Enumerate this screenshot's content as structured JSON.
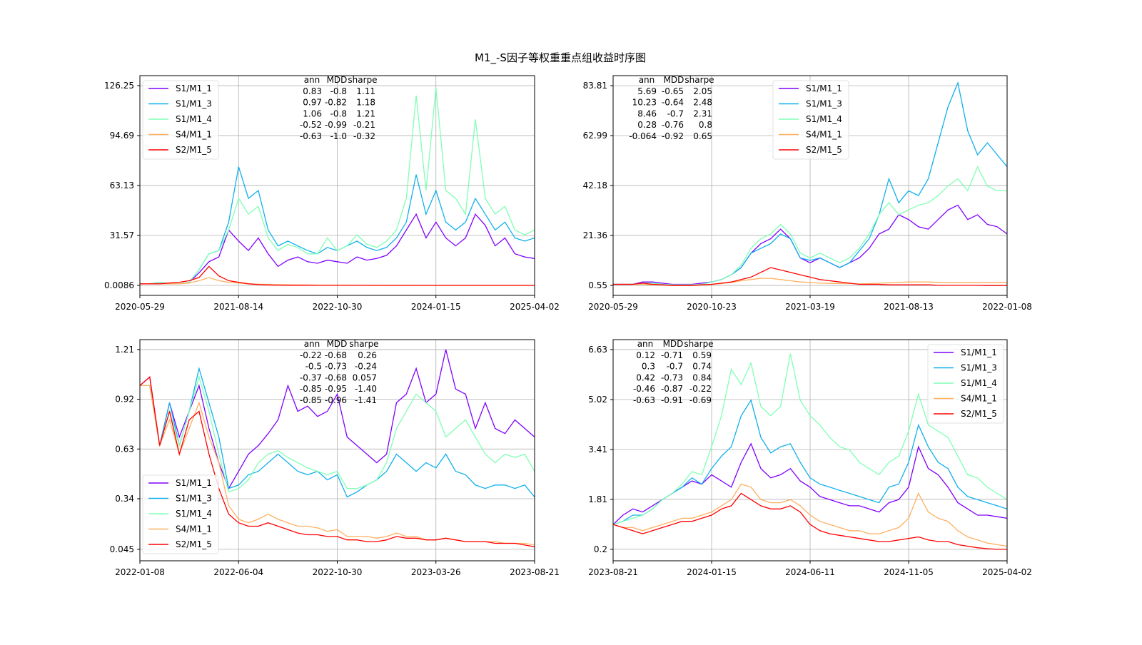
{
  "title": "M1_-S因子等权重重点组收益时序图",
  "series_colors": {
    "S1/M1_1": "#8000ff",
    "S1/M1_3": "#10b0ec",
    "S1/M1_4": "#80ffb4",
    "S4/M1_1": "#ffb060",
    "S2/M1_5": "#ff0000"
  },
  "chart_data": [
    {
      "type": "line",
      "xticks": [
        "2020-05-29",
        "2021-08-14",
        "2022-10-30",
        "2024-01-15",
        "2025-04-02"
      ],
      "yticks": [
        "0.0086",
        "31.57",
        "63.13",
        "94.69",
        "126.25"
      ],
      "ylim": [
        -6.3,
        132.6
      ],
      "grid": true,
      "legend_placement": "upper-left",
      "stats_header": [
        "ann",
        "MDD",
        "sharpe"
      ],
      "stats_rows": [
        [
          "0.83",
          "-0.8",
          "1.11"
        ],
        [
          "0.97",
          "-0.82",
          "1.18"
        ],
        [
          "1.06",
          "-0.8",
          "1.21"
        ],
        [
          "-0.52",
          "-0.99",
          "-0.21"
        ],
        [
          "-0.63",
          "-1.0",
          "-0.32"
        ]
      ],
      "series": [
        {
          "name": "S1/M1_1",
          "values": [
            1,
            1,
            2,
            1,
            1,
            2,
            8,
            15,
            18,
            35,
            28,
            22,
            30,
            20,
            12,
            16,
            18,
            15,
            14,
            16,
            15,
            14,
            18,
            16,
            17,
            19,
            25,
            35,
            45,
            30,
            40,
            30,
            25,
            30,
            45,
            38,
            25,
            30,
            20,
            18,
            17
          ]
        },
        {
          "name": "S1/M1_3",
          "values": [
            1,
            1,
            2,
            1,
            1,
            2,
            10,
            20,
            22,
            40,
            75,
            55,
            60,
            35,
            25,
            28,
            25,
            22,
            20,
            24,
            22,
            25,
            28,
            24,
            22,
            24,
            30,
            40,
            70,
            45,
            60,
            40,
            35,
            40,
            55,
            45,
            35,
            40,
            30,
            28,
            30
          ]
        },
        {
          "name": "S1/M1_4",
          "values": [
            1,
            1,
            2,
            1,
            1,
            2,
            10,
            20,
            22,
            35,
            55,
            45,
            50,
            30,
            22,
            26,
            24,
            20,
            20,
            30,
            22,
            25,
            32,
            26,
            24,
            28,
            35,
            55,
            120,
            60,
            125,
            60,
            55,
            45,
            105,
            55,
            45,
            50,
            35,
            32,
            35
          ]
        },
        {
          "name": "S4/M1_1",
          "values": [
            1,
            1,
            1,
            1,
            1,
            1.5,
            3,
            5,
            3,
            2,
            1.5,
            1,
            0.8,
            0.6,
            0.5,
            0.4,
            0.3,
            0.3,
            0.2,
            0.2,
            0.2,
            0.1,
            0.1,
            0.1,
            0.1,
            0.1,
            0.1,
            0.1,
            0.1,
            0.05,
            0.05,
            0.05,
            0.05,
            0.05,
            0.05,
            0.03,
            0.03,
            0.03,
            0.02,
            0.02,
            0.02
          ]
        },
        {
          "name": "S2/M1_5",
          "values": [
            1,
            1,
            1,
            1.5,
            2,
            3,
            5,
            12,
            6,
            3,
            2,
            1,
            0.5,
            0.3,
            0.2,
            0.1,
            0.1,
            0.1,
            0.08,
            0.06,
            0.05,
            0.05,
            0.04,
            0.04,
            0.03,
            0.03,
            0.03,
            0.02,
            0.02,
            0.02,
            0.02,
            0.02,
            0.01,
            0.01,
            0.01,
            0.01,
            0.01,
            0.01,
            0.01,
            0.01,
            0.01
          ]
        }
      ]
    },
    {
      "type": "line",
      "xticks": [
        "2020-05-29",
        "2020-10-23",
        "2021-03-19",
        "2021-08-13",
        "2022-01-08"
      ],
      "yticks": [
        "0.55",
        "21.36",
        "42.18",
        "62.99",
        "83.81"
      ],
      "ylim": [
        -3.6,
        88.0
      ],
      "grid": true,
      "legend_placement": "upper-center",
      "stats_header": [
        "ann",
        "MDD",
        "sharpe"
      ],
      "stats_rows": [
        [
          "5.69",
          "-0.65",
          "2.05"
        ],
        [
          "10.23",
          "-0.64",
          "2.48"
        ],
        [
          "8.46",
          "-0.7",
          "2.31"
        ],
        [
          "0.28",
          "-0.76",
          "0.8"
        ],
        [
          "-0.064",
          "-0.92",
          "0.65"
        ]
      ],
      "series": [
        {
          "name": "S1/M1_1",
          "values": [
            1,
            1,
            1,
            2,
            2,
            1.5,
            1,
            1,
            1,
            1.5,
            2,
            3,
            5,
            8,
            14,
            18,
            20,
            24,
            20,
            12,
            10,
            12,
            10,
            8,
            10,
            12,
            16,
            22,
            24,
            30,
            28,
            25,
            24,
            28,
            32,
            34,
            28,
            30,
            26,
            25,
            22
          ]
        },
        {
          "name": "S1/M1_3",
          "values": [
            1,
            1,
            1,
            1.5,
            1.5,
            1,
            0.8,
            0.8,
            0.8,
            1,
            2,
            3,
            5,
            8,
            14,
            16,
            18,
            22,
            20,
            12,
            11,
            12,
            10,
            8,
            10,
            15,
            20,
            30,
            45,
            35,
            40,
            38,
            45,
            60,
            75,
            85,
            65,
            55,
            60,
            55,
            50
          ]
        },
        {
          "name": "S1/M1_4",
          "values": [
            1,
            1,
            1,
            1.5,
            1.5,
            1,
            0.8,
            0.8,
            0.8,
            1,
            2,
            3,
            5,
            9,
            16,
            20,
            22,
            26,
            22,
            14,
            12,
            14,
            12,
            10,
            12,
            16,
            22,
            30,
            35,
            30,
            32,
            34,
            35,
            38,
            42,
            45,
            40,
            50,
            42,
            40,
            40
          ]
        },
        {
          "name": "S4/M1_1",
          "values": [
            1,
            1,
            1,
            1,
            0.8,
            0.7,
            0.6,
            0.6,
            0.6,
            0.7,
            1,
            1.3,
            1.8,
            2.5,
            3,
            3.5,
            3.5,
            3,
            2.5,
            2,
            1.8,
            1.5,
            1.4,
            1.3,
            1.3,
            1.2,
            1.3,
            1.5,
            1.6,
            1.8,
            2,
            2,
            2,
            1.8,
            1.8,
            1.7,
            1.8,
            1.8,
            1.8,
            1.8,
            1.8
          ]
        },
        {
          "name": "S2/M1_5",
          "values": [
            1,
            1,
            1,
            1.5,
            1,
            0.8,
            0.5,
            0.5,
            0.5,
            0.8,
            1,
            1.5,
            2,
            3,
            4,
            6,
            8,
            7,
            6,
            5,
            4,
            3,
            2.5,
            2,
            1.5,
            1,
            1,
            1,
            0.8,
            0.8,
            0.8,
            0.8,
            0.8,
            0.6,
            0.6,
            0.6,
            0.6,
            0.6,
            0.5,
            0.5,
            0.5
          ]
        }
      ]
    },
    {
      "type": "line",
      "xticks": [
        "2022-01-08",
        "2022-06-04",
        "2022-10-30",
        "2023-03-26",
        "2023-08-21"
      ],
      "yticks": [
        "0.045",
        "0.34",
        "0.63",
        "0.92",
        "1.21"
      ],
      "ylim": [
        -0.022,
        1.268
      ],
      "grid": true,
      "legend_placement": "lower-left",
      "stats_header": [
        "ann",
        "MDD",
        "sharpe"
      ],
      "stats_rows": [
        [
          "-0.22",
          "-0.68",
          "0.26"
        ],
        [
          "-0.5",
          "-0.73",
          "-0.24"
        ],
        [
          "-0.37",
          "-0.68",
          "0.057"
        ],
        [
          "-0.85",
          "-0.95",
          "-1.40"
        ],
        [
          "-0.85",
          "-0.96",
          "-1.41"
        ]
      ],
      "series": [
        {
          "name": "S1/M1_1",
          "values": [
            1.0,
            1.05,
            0.65,
            0.9,
            0.7,
            0.85,
            1.0,
            0.75,
            0.55,
            0.4,
            0.5,
            0.6,
            0.65,
            0.72,
            0.8,
            1.0,
            0.85,
            0.88,
            0.82,
            0.85,
            0.95,
            0.7,
            0.65,
            0.6,
            0.55,
            0.6,
            0.9,
            0.95,
            1.1,
            0.9,
            0.95,
            1.21,
            0.98,
            0.95,
            0.75,
            0.9,
            0.75,
            0.72,
            0.8,
            0.75,
            0.7
          ]
        },
        {
          "name": "S1/M1_3",
          "values": [
            1.0,
            1.0,
            0.65,
            0.9,
            0.65,
            0.85,
            1.1,
            0.9,
            0.7,
            0.4,
            0.42,
            0.48,
            0.5,
            0.55,
            0.6,
            0.55,
            0.5,
            0.48,
            0.5,
            0.45,
            0.48,
            0.35,
            0.38,
            0.42,
            0.45,
            0.5,
            0.6,
            0.55,
            0.5,
            0.55,
            0.52,
            0.6,
            0.5,
            0.48,
            0.42,
            0.4,
            0.42,
            0.42,
            0.4,
            0.42,
            0.35
          ]
        },
        {
          "name": "S1/M1_4",
          "values": [
            1.0,
            1.0,
            0.65,
            0.85,
            0.65,
            0.85,
            1.05,
            0.85,
            0.6,
            0.38,
            0.4,
            0.45,
            0.55,
            0.6,
            0.62,
            0.58,
            0.55,
            0.52,
            0.5,
            0.48,
            0.5,
            0.4,
            0.4,
            0.42,
            0.45,
            0.55,
            0.75,
            0.85,
            0.95,
            0.9,
            0.85,
            0.7,
            0.75,
            0.8,
            0.7,
            0.6,
            0.55,
            0.6,
            0.58,
            0.6,
            0.5
          ]
        },
        {
          "name": "S4/M1_1",
          "values": [
            1.0,
            1.0,
            0.65,
            0.8,
            0.6,
            0.75,
            0.9,
            0.7,
            0.55,
            0.3,
            0.22,
            0.2,
            0.22,
            0.25,
            0.22,
            0.2,
            0.18,
            0.18,
            0.17,
            0.15,
            0.16,
            0.12,
            0.12,
            0.12,
            0.11,
            0.12,
            0.14,
            0.12,
            0.12,
            0.1,
            0.1,
            0.11,
            0.1,
            0.09,
            0.09,
            0.09,
            0.09,
            0.08,
            0.08,
            0.08,
            0.07
          ]
        },
        {
          "name": "S2/M1_5",
          "values": [
            1.0,
            1.05,
            0.65,
            0.85,
            0.6,
            0.8,
            0.85,
            0.6,
            0.4,
            0.25,
            0.2,
            0.18,
            0.18,
            0.2,
            0.18,
            0.16,
            0.14,
            0.13,
            0.13,
            0.12,
            0.12,
            0.1,
            0.1,
            0.09,
            0.09,
            0.1,
            0.12,
            0.11,
            0.11,
            0.1,
            0.1,
            0.11,
            0.1,
            0.09,
            0.09,
            0.09,
            0.08,
            0.08,
            0.08,
            0.07,
            0.06
          ]
        }
      ]
    },
    {
      "type": "line",
      "xticks": [
        "2023-08-21",
        "2024-01-15",
        "2024-06-11",
        "2024-11-05",
        "2025-04-02"
      ],
      "yticks": [
        "0.2",
        "1.81",
        "3.41",
        "5.02",
        "6.63"
      ],
      "ylim": [
        -0.17,
        6.95
      ],
      "grid": true,
      "legend_placement": "upper-right",
      "stats_header": [
        "ann",
        "MDD",
        "sharpe"
      ],
      "stats_rows": [
        [
          "0.12",
          "-0.71",
          "0.59"
        ],
        [
          "0.3",
          "-0.7",
          "0.74"
        ],
        [
          "0.42",
          "-0.73",
          "0.84"
        ],
        [
          "-0.46",
          "-0.87",
          "-0.22"
        ],
        [
          "-0.63",
          "-0.91",
          "-0.69"
        ]
      ],
      "series": [
        {
          "name": "S1/M1_1",
          "values": [
            1,
            1.3,
            1.5,
            1.4,
            1.6,
            1.8,
            2.0,
            2.2,
            2.4,
            2.3,
            2.6,
            2.4,
            2.2,
            3.0,
            3.6,
            2.8,
            2.5,
            2.6,
            2.8,
            2.4,
            2.2,
            1.9,
            1.8,
            1.7,
            1.6,
            1.6,
            1.5,
            1.4,
            1.7,
            1.8,
            2.2,
            3.5,
            2.8,
            2.6,
            2.2,
            1.7,
            1.5,
            1.3,
            1.3,
            1.25,
            1.2
          ]
        },
        {
          "name": "S1/M1_3",
          "values": [
            1,
            1.1,
            1.3,
            1.3,
            1.5,
            1.8,
            2.0,
            2.2,
            2.5,
            2.3,
            2.8,
            3.2,
            3.5,
            4.5,
            5.0,
            3.8,
            3.3,
            3.5,
            3.6,
            3.0,
            2.5,
            2.3,
            2.2,
            2.1,
            2.0,
            1.9,
            1.8,
            1.7,
            2.2,
            2.3,
            3.0,
            4.2,
            3.5,
            3.0,
            2.8,
            2.2,
            1.9,
            1.8,
            1.7,
            1.6,
            1.5
          ]
        },
        {
          "name": "S1/M1_4",
          "values": [
            1,
            1.1,
            1.2,
            1.3,
            1.5,
            1.8,
            2.0,
            2.3,
            2.7,
            2.6,
            3.5,
            4.5,
            6.0,
            5.5,
            6.2,
            4.8,
            4.5,
            4.8,
            6.5,
            5.0,
            4.5,
            4.2,
            3.8,
            3.5,
            3.4,
            3.0,
            2.8,
            2.6,
            3.0,
            3.2,
            4.0,
            5.2,
            4.2,
            4.0,
            3.8,
            3.2,
            2.6,
            2.5,
            2.2,
            2.0,
            1.8
          ]
        },
        {
          "name": "S4/M1_1",
          "values": [
            1,
            0.9,
            0.9,
            0.8,
            0.9,
            1.0,
            1.1,
            1.2,
            1.2,
            1.3,
            1.4,
            1.6,
            1.8,
            2.3,
            2.2,
            1.8,
            1.7,
            1.7,
            1.8,
            1.6,
            1.3,
            1.1,
            1.0,
            0.9,
            0.8,
            0.8,
            0.7,
            0.7,
            0.8,
            0.9,
            1.2,
            2.0,
            1.4,
            1.2,
            1.1,
            0.8,
            0.6,
            0.5,
            0.4,
            0.35,
            0.3
          ]
        },
        {
          "name": "S2/M1_5",
          "values": [
            1,
            0.9,
            0.8,
            0.7,
            0.8,
            0.9,
            1.0,
            1.1,
            1.1,
            1.2,
            1.3,
            1.5,
            1.6,
            2.0,
            1.8,
            1.6,
            1.5,
            1.5,
            1.6,
            1.4,
            1.0,
            0.8,
            0.7,
            0.65,
            0.6,
            0.55,
            0.5,
            0.45,
            0.45,
            0.5,
            0.55,
            0.6,
            0.5,
            0.45,
            0.45,
            0.35,
            0.3,
            0.25,
            0.22,
            0.2,
            0.2
          ]
        }
      ]
    }
  ]
}
